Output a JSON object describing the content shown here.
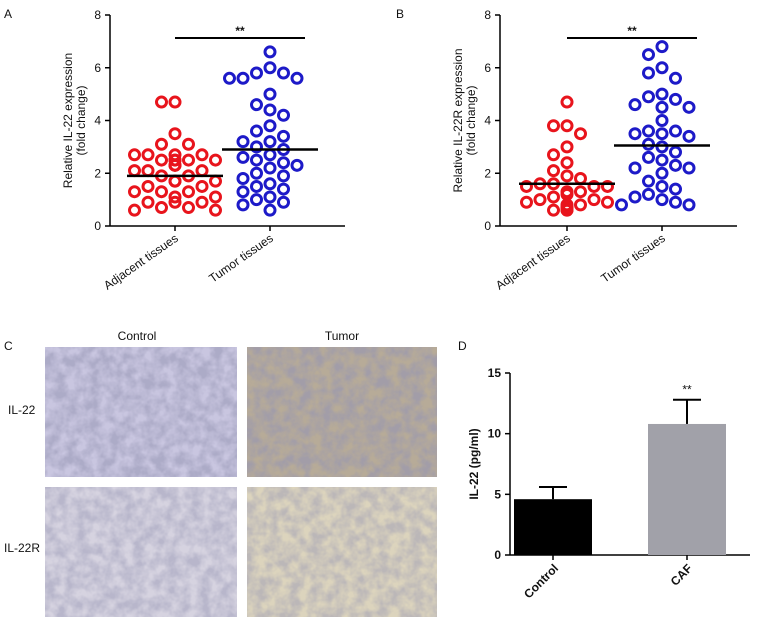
{
  "chart_data": [
    {
      "type": "dotplot",
      "panel_label": "A",
      "ylabel": [
        "Relative IL-22 expression",
        "(fold change)"
      ],
      "categories": [
        "Adjacent tissues",
        "Tumor tissues"
      ],
      "values": [
        [
          4.7,
          4.7,
          3.5,
          3.1,
          3.1,
          2.7,
          2.7,
          2.7,
          2.7,
          2.5,
          2.5,
          2.5,
          2.5,
          2.5,
          2.3,
          2.3,
          2.1,
          2.1,
          2.1,
          1.9,
          1.9,
          1.7,
          1.7,
          1.7,
          1.5,
          1.5,
          1.3,
          1.3,
          1.3,
          1.1,
          1.1,
          0.9,
          0.9,
          0.9,
          0.7,
          0.7,
          0.6,
          0.6
        ],
        [
          6.6,
          6.0,
          5.8,
          5.8,
          5.6,
          5.6,
          5.6,
          5.0,
          4.6,
          4.4,
          4.2,
          3.8,
          3.6,
          3.4,
          3.2,
          3.2,
          3.0,
          2.9,
          2.7,
          2.6,
          2.5,
          2.4,
          2.3,
          2.2,
          2.0,
          1.9,
          1.8,
          1.6,
          1.5,
          1.4,
          1.3,
          1.1,
          1.0,
          0.9,
          0.8,
          0.6
        ]
      ],
      "means": [
        1.9,
        2.9
      ],
      "colors": [
        "#e8141c",
        "#1d1ac8"
      ],
      "significance": "**",
      "ylim": [
        0,
        8
      ],
      "yticks": [
        0,
        2,
        4,
        6,
        8
      ]
    },
    {
      "type": "dotplot",
      "panel_label": "B",
      "ylabel": [
        "Relative IL-22R expression",
        "(fold change)"
      ],
      "categories": [
        "Adjacent tissues",
        "Tumor tissues"
      ],
      "values": [
        [
          4.7,
          3.8,
          3.8,
          3.5,
          3.0,
          2.7,
          2.4,
          2.1,
          1.9,
          1.8,
          1.6,
          1.6,
          1.5,
          1.5,
          1.5,
          1.3,
          1.3,
          1.2,
          1.1,
          1.0,
          1.0,
          0.9,
          0.9,
          0.8,
          0.8,
          0.7,
          0.7,
          0.6,
          0.6,
          0.6
        ],
        [
          6.8,
          6.5,
          6.0,
          5.8,
          5.6,
          5.0,
          4.9,
          4.8,
          4.6,
          4.5,
          4.5,
          4.0,
          3.6,
          3.6,
          3.5,
          3.5,
          3.4,
          3.1,
          3.0,
          2.8,
          2.6,
          2.5,
          2.3,
          2.2,
          2.2,
          2.0,
          1.7,
          1.5,
          1.4,
          1.2,
          1.1,
          1.0,
          0.9,
          0.8,
          0.8
        ]
      ],
      "means": [
        1.6,
        3.05
      ],
      "colors": [
        "#e8141c",
        "#1d1ac8"
      ],
      "significance": "**",
      "ylim": [
        0,
        8
      ],
      "yticks": [
        0,
        2,
        4,
        6,
        8
      ]
    },
    {
      "type": "bar",
      "panel_label": "D",
      "ylabel": "IL-22 (pg/ml)",
      "categories": [
        "Control",
        "CAF"
      ],
      "values": [
        4.6,
        10.8
      ],
      "errors": [
        1.0,
        2.0
      ],
      "colors": [
        "#000000",
        "#a1a1a9"
      ],
      "annotations": [
        null,
        "**"
      ],
      "ylim": [
        0,
        15
      ],
      "yticks": [
        0,
        5,
        10,
        15
      ]
    }
  ],
  "image_panel": {
    "panel_label": "C",
    "columns": [
      "Control",
      "Tumor"
    ],
    "rows": [
      "IL-22",
      "IL-22R"
    ]
  }
}
